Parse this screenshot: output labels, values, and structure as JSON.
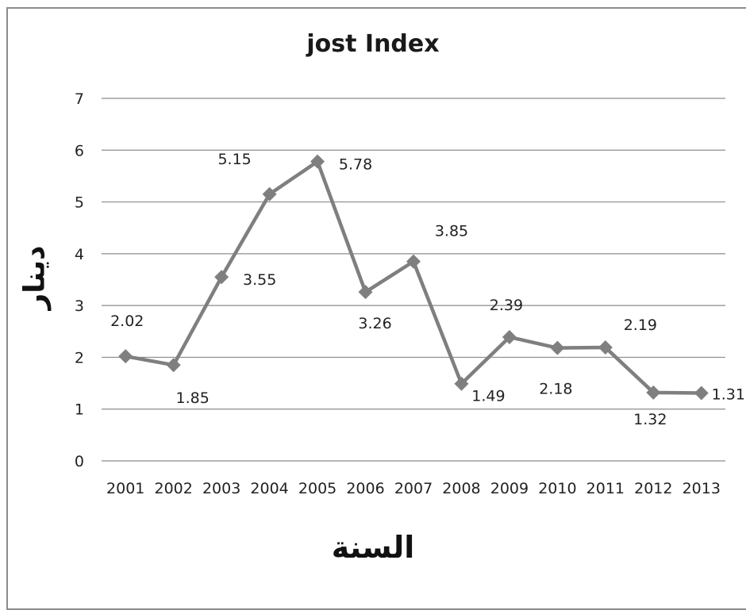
{
  "chart_data": {
    "type": "line",
    "title": "jost Index",
    "xlabel": "السنة",
    "ylabel": "دينار",
    "categories": [
      "2001",
      "2002",
      "2003",
      "2004",
      "2005",
      "2006",
      "2007",
      "2008",
      "2009",
      "2010",
      "2011",
      "2012",
      "2013"
    ],
    "series": [
      {
        "name": "",
        "values": [
          2.02,
          1.85,
          3.55,
          5.15,
          5.78,
          3.26,
          3.85,
          1.49,
          2.39,
          2.18,
          2.19,
          1.32,
          1.31
        ],
        "labels": [
          "2.02",
          "1.85",
          "3.55",
          "5.15",
          "5.78",
          "3.26",
          "3.85",
          "1.49",
          "2.39",
          "2.18",
          "2.19",
          "1.32",
          "1.31"
        ],
        "color": "#7f7f7f"
      }
    ],
    "ylim": [
      0,
      7
    ],
    "yticks": [
      "0",
      "1",
      "2",
      "3",
      "4",
      "5",
      "6",
      "7"
    ],
    "grid": true,
    "legend": "none"
  }
}
